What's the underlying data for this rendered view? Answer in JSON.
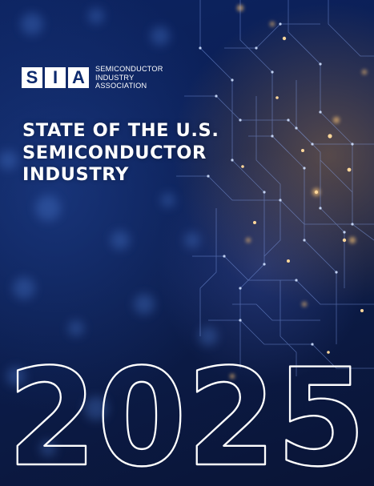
{
  "logo": {
    "letters": [
      "S",
      "I",
      "A"
    ],
    "lines": [
      "SEMICONDUCTOR",
      "INDUSTRY",
      "ASSOCIATION"
    ]
  },
  "title": {
    "lines": [
      "STATE OF THE U.S.",
      "SEMICONDUCTOR",
      "INDUSTRY"
    ]
  },
  "year": "2025",
  "colors": {
    "background": "#0b1a44",
    "text": "#ffffff",
    "logo_letter": "#0d2a6e",
    "glow": "#d9a35a"
  }
}
